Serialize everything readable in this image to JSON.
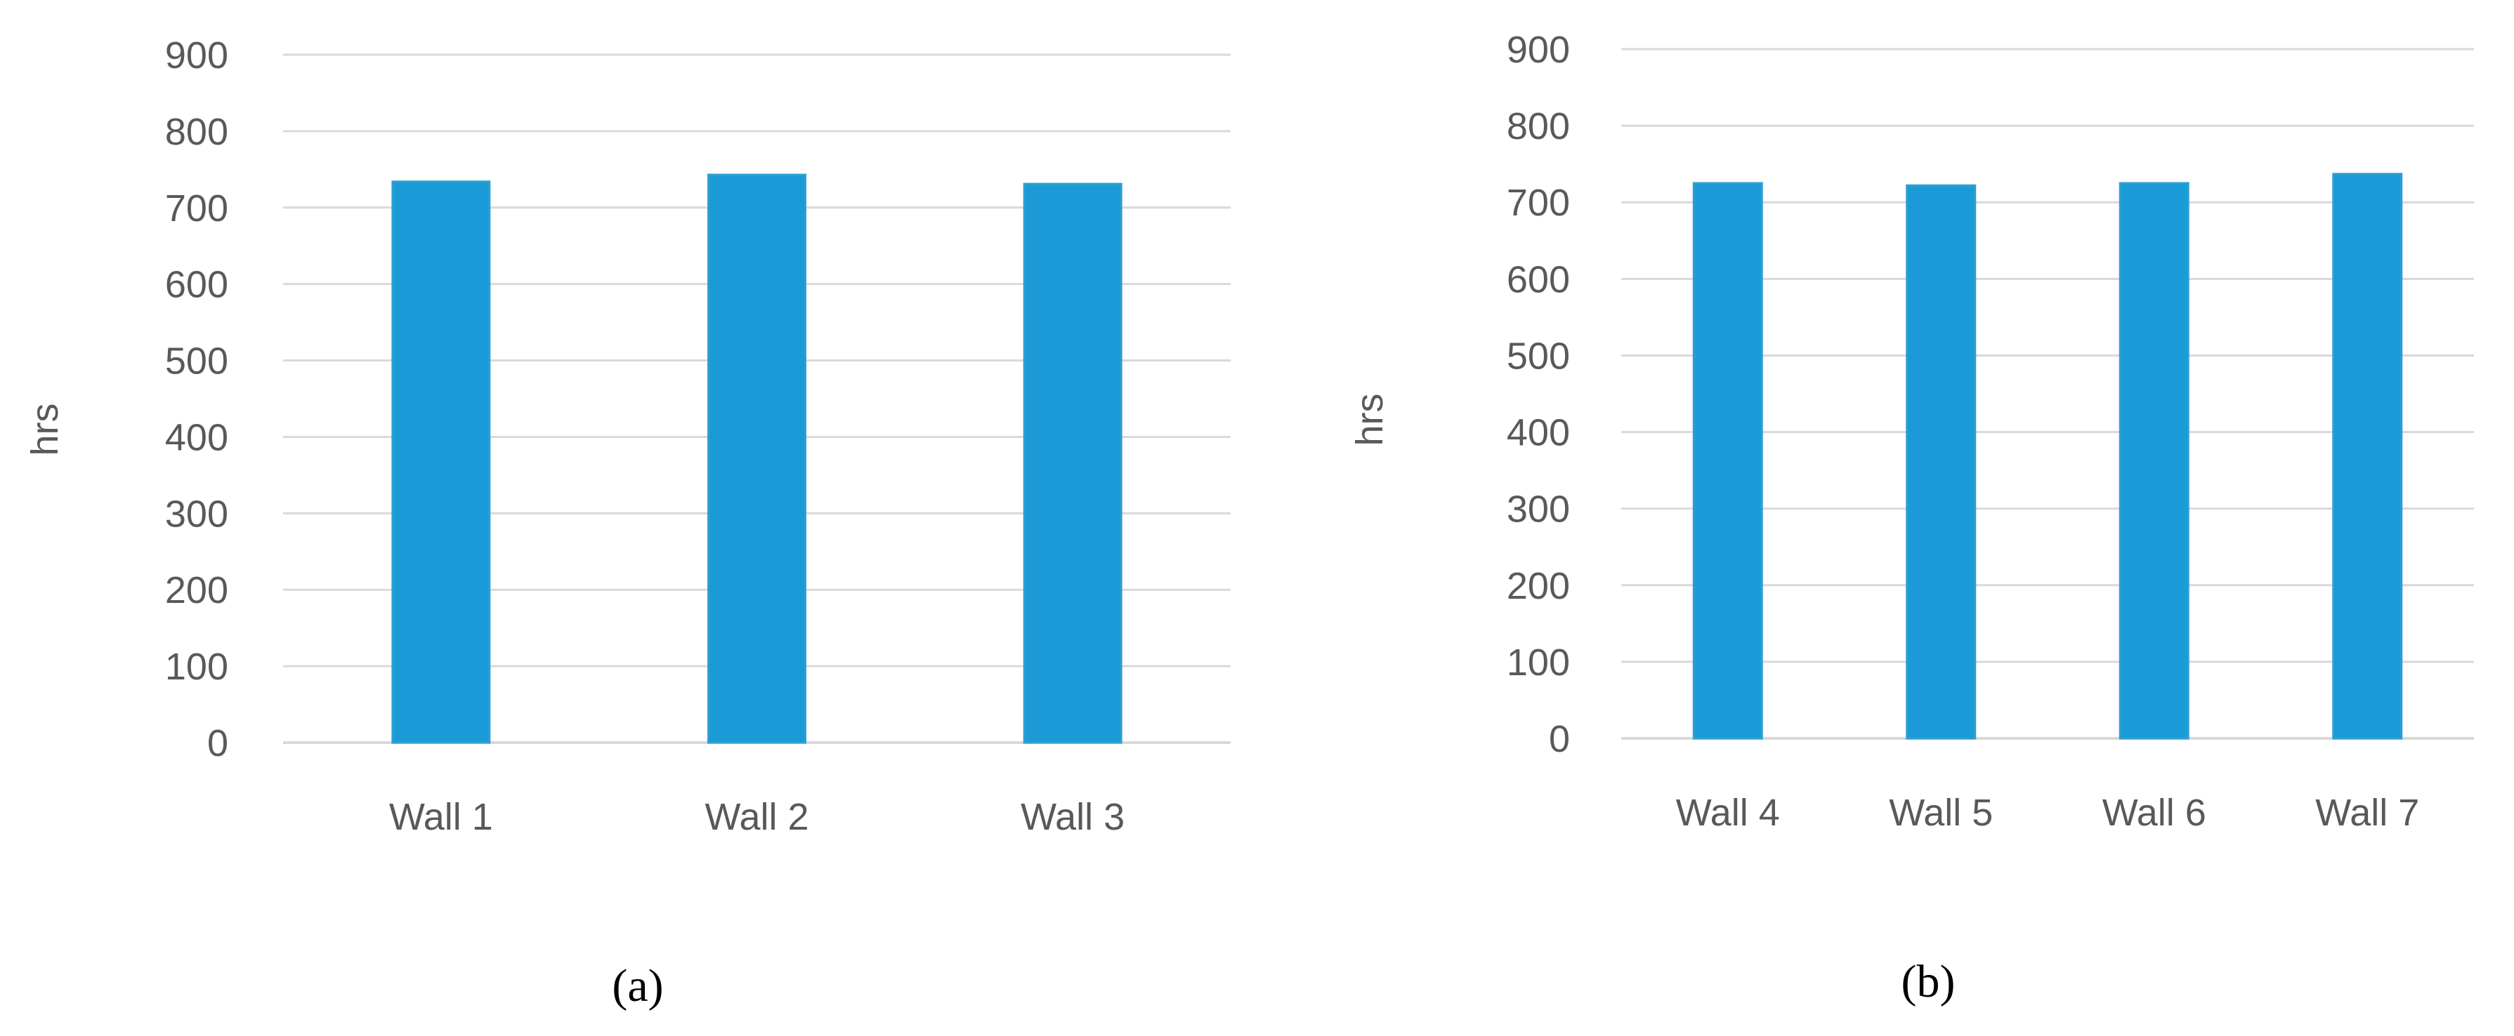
{
  "chart_data": [
    {
      "type": "bar",
      "panel_label": "(a)",
      "categories": [
        "Wall 1",
        "Wall 2",
        "Wall 3"
      ],
      "values": [
        734,
        743,
        731
      ],
      "ylabel": "hrs",
      "xlabel": "",
      "ylim": [
        0,
        900
      ],
      "yticks": [
        "0",
        "100",
        "200",
        "300",
        "400",
        "500",
        "600",
        "700",
        "800",
        "900"
      ],
      "grid": true,
      "legend": "none",
      "bar_color": "#1a9bd7"
    },
    {
      "type": "bar",
      "panel_label": "(b)",
      "categories": [
        "Wall 4",
        "Wall 5",
        "Wall 6",
        "Wall 7"
      ],
      "values": [
        725,
        722,
        725,
        737
      ],
      "ylabel": "hrs",
      "xlabel": "",
      "ylim": [
        0,
        900
      ],
      "yticks": [
        "0",
        "100",
        "200",
        "300",
        "400",
        "500",
        "600",
        "700",
        "800",
        "900"
      ],
      "grid": true,
      "legend": "none",
      "bar_color": "#1a9bd7"
    }
  ],
  "colors": {
    "gridline": "#d9d9d9",
    "axis_line": "#d9d9d9",
    "tick_text": "#595959",
    "bar_edge": "#2e9fd3"
  }
}
